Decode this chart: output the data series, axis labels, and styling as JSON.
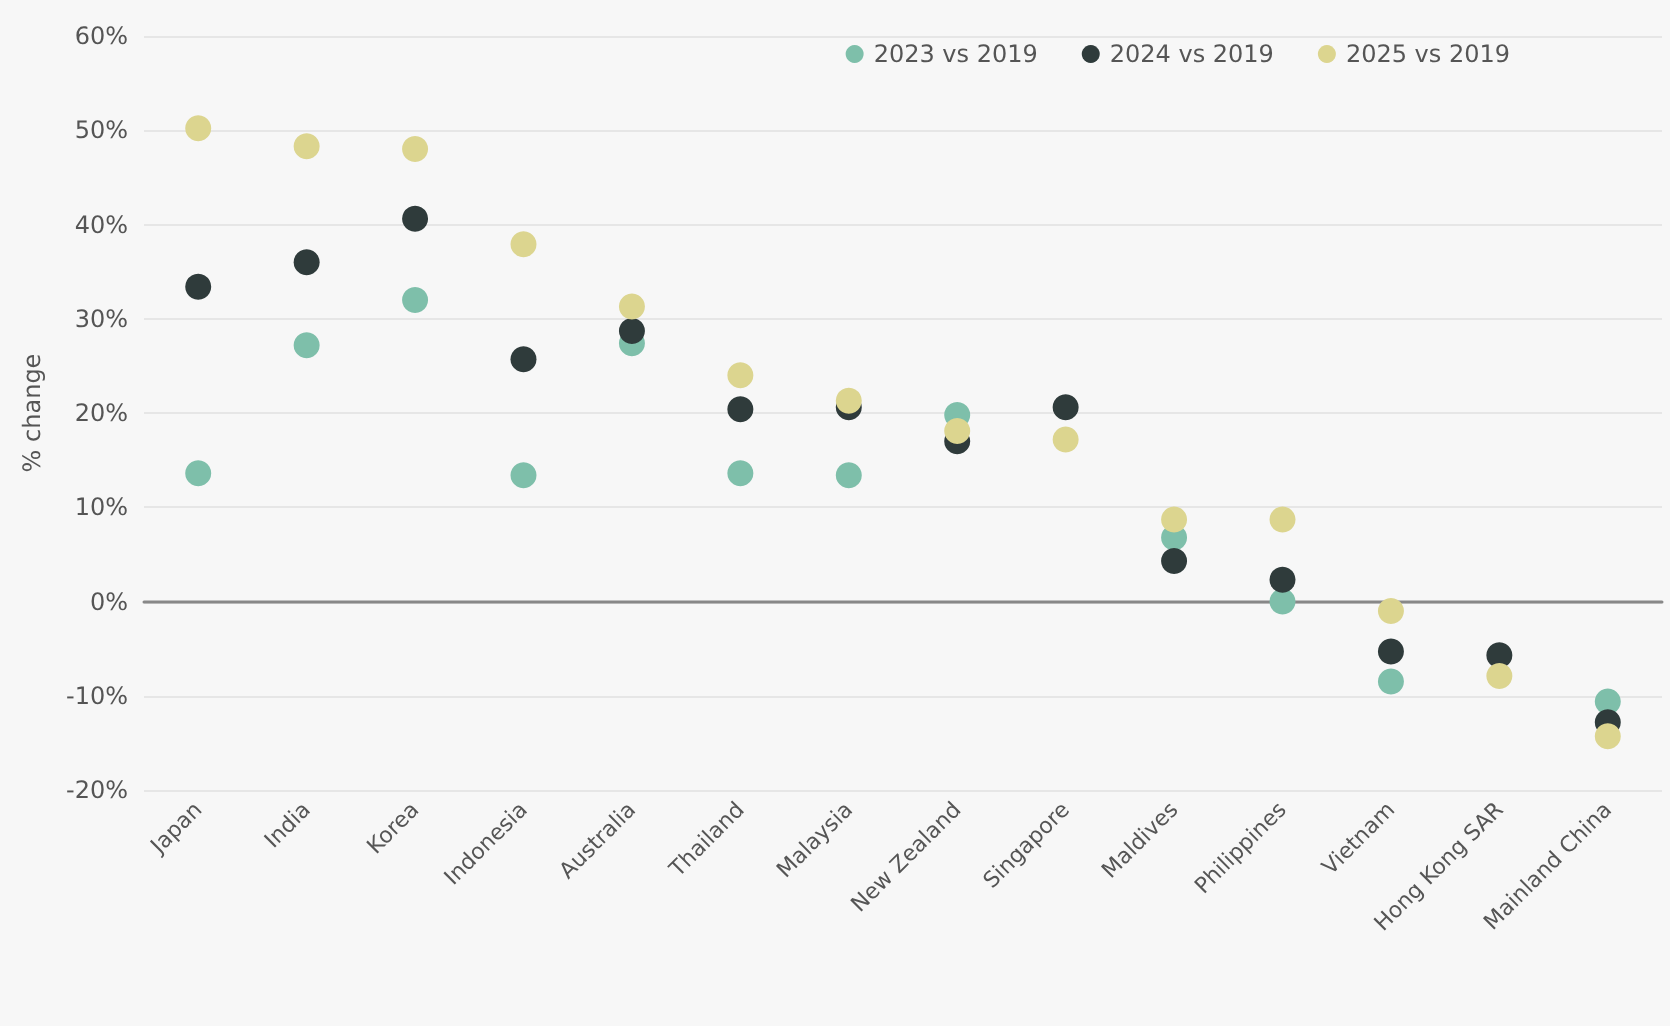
{
  "chart_data": {
    "type": "scatter",
    "ylabel": "% change",
    "categories": [
      "Japan",
      "India",
      "Korea",
      "Indonesia",
      "Australia",
      "Thailand",
      "Malaysia",
      "New Zealand",
      "Singapore",
      "Maldives",
      "Philippines",
      "Vietnam",
      "Hong Kong SAR",
      "Mainland China"
    ],
    "series": [
      {
        "name": "2023 vs 2019",
        "color": "#7ebfaa",
        "values": [
          13.6,
          27.2,
          32,
          13.4,
          27.4,
          13.6,
          13.4,
          19.8,
          null,
          6.8,
          0,
          -8.5,
          null,
          -10.6
        ]
      },
      {
        "name": "2024 vs 2019",
        "color": "#2f3b3b",
        "values": [
          33.4,
          36,
          40.6,
          25.7,
          28.7,
          20.4,
          20.6,
          17,
          20.6,
          4.3,
          2.3,
          -5.3,
          -5.7,
          -12.8
        ]
      },
      {
        "name": "2025 vs 2019",
        "color": "#dcd58f",
        "values": [
          50.2,
          48.3,
          48,
          37.9,
          31.3,
          24,
          21.3,
          18.1,
          17.2,
          8.7,
          8.7,
          -1,
          -7.9,
          -14.3
        ]
      }
    ],
    "ylim": [
      -20,
      60
    ],
    "yticks": [
      {
        "value": -20,
        "label": "-20%"
      },
      {
        "value": -10,
        "label": "-10%"
      },
      {
        "value": 0,
        "label": "0%"
      },
      {
        "value": 10,
        "label": "10%"
      },
      {
        "value": 20,
        "label": "20%"
      },
      {
        "value": 30,
        "label": "30%"
      },
      {
        "value": 40,
        "label": "40%"
      },
      {
        "value": 50,
        "label": "50%"
      },
      {
        "value": 60,
        "label": "60%"
      }
    ],
    "grid": "y",
    "legend": "top right",
    "marker": "circle"
  }
}
